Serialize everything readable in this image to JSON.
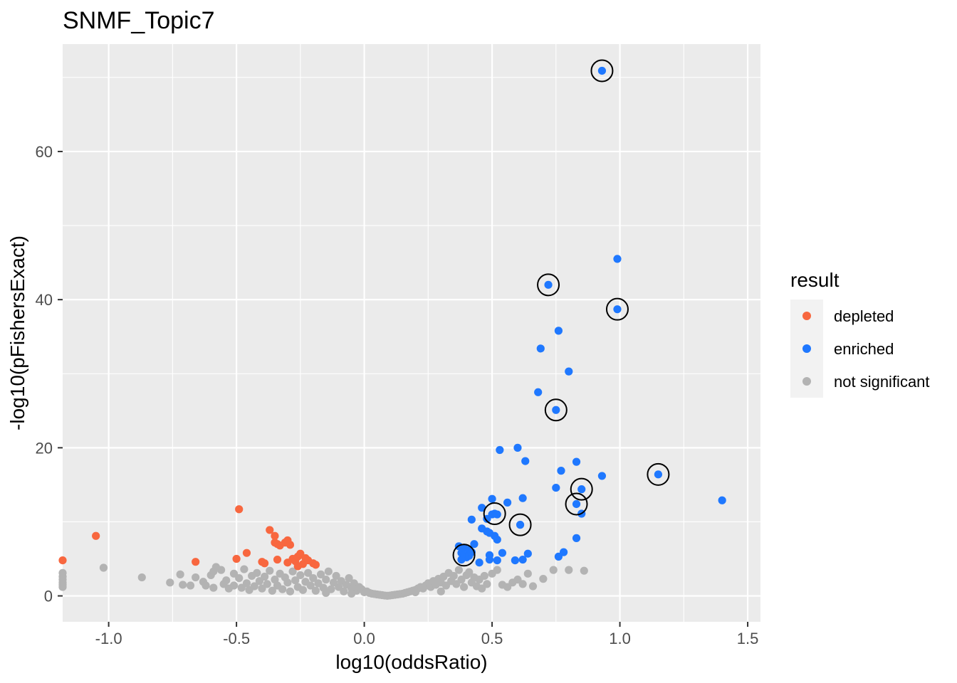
{
  "chart_data": {
    "type": "scatter",
    "title": "SNMF_Topic7",
    "xlabel": "log10(oddsRatio)",
    "ylabel": "-log10(pFishersExact)",
    "xlim": [
      -1.18,
      1.55
    ],
    "ylim": [
      -3.5,
      74.5
    ],
    "x_ticks": [
      -1.0,
      -0.5,
      0.0,
      0.5,
      1.0,
      1.5
    ],
    "x_tick_labels": [
      "-1.0",
      "-0.5",
      "0.0",
      "0.5",
      "1.0",
      "1.5"
    ],
    "y_ticks": [
      0,
      20,
      40,
      60
    ],
    "y_tick_labels": [
      "0",
      "20",
      "40",
      "60"
    ],
    "grid": true,
    "legend": {
      "title": "result",
      "placement": "right",
      "entries": [
        {
          "label": "depleted",
          "color": "#F8673F"
        },
        {
          "label": "enriched",
          "color": "#1F78FF"
        },
        {
          "label": "not significant",
          "color": "#B3B3B3"
        }
      ]
    },
    "series": [
      {
        "name": "depleted",
        "color": "#F8673F",
        "points": [
          [
            -1.18,
            4.8
          ],
          [
            -1.05,
            8.1
          ],
          [
            -0.49,
            11.7
          ],
          [
            -0.66,
            4.6
          ],
          [
            -0.46,
            5.8
          ],
          [
            -0.5,
            5.0
          ],
          [
            -0.4,
            4.6
          ],
          [
            -0.39,
            4.4
          ],
          [
            -0.37,
            8.9
          ],
          [
            -0.35,
            8.1
          ],
          [
            -0.35,
            7.2
          ],
          [
            -0.34,
            7.0
          ],
          [
            -0.33,
            6.8
          ],
          [
            -0.31,
            7.2
          ],
          [
            -0.3,
            7.5
          ],
          [
            -0.29,
            6.9
          ],
          [
            -0.28,
            5.0
          ],
          [
            -0.27,
            4.7
          ],
          [
            -0.26,
            5.3
          ],
          [
            -0.25,
            5.7
          ],
          [
            -0.24,
            4.3
          ],
          [
            -0.23,
            5.1
          ],
          [
            -0.22,
            4.8
          ],
          [
            -0.2,
            4.4
          ],
          [
            -0.19,
            4.2
          ],
          [
            -0.34,
            4.9
          ],
          [
            -0.3,
            4.5
          ],
          [
            -0.26,
            4.0
          ]
        ]
      },
      {
        "name": "enriched",
        "color": "#1F78FF",
        "points": [
          [
            0.93,
            70.9
          ],
          [
            0.99,
            45.5
          ],
          [
            0.72,
            42.0
          ],
          [
            0.99,
            38.7
          ],
          [
            0.76,
            35.8
          ],
          [
            0.69,
            33.4
          ],
          [
            0.8,
            30.3
          ],
          [
            0.68,
            27.5
          ],
          [
            0.75,
            25.1
          ],
          [
            0.53,
            19.7
          ],
          [
            0.6,
            20.0
          ],
          [
            0.63,
            18.2
          ],
          [
            0.83,
            18.1
          ],
          [
            0.77,
            16.9
          ],
          [
            0.93,
            16.2
          ],
          [
            1.15,
            16.4
          ],
          [
            0.75,
            14.6
          ],
          [
            0.85,
            14.4
          ],
          [
            0.62,
            13.2
          ],
          [
            0.5,
            13.1
          ],
          [
            1.4,
            12.9
          ],
          [
            0.56,
            12.6
          ],
          [
            0.83,
            12.4
          ],
          [
            0.46,
            11.9
          ],
          [
            0.5,
            11.0
          ],
          [
            0.51,
            11.1
          ],
          [
            0.52,
            11.0
          ],
          [
            0.85,
            11.1
          ],
          [
            0.48,
            10.4
          ],
          [
            0.42,
            10.3
          ],
          [
            0.61,
            9.6
          ],
          [
            0.46,
            9.1
          ],
          [
            0.48,
            8.7
          ],
          [
            0.49,
            8.5
          ],
          [
            0.51,
            8.1
          ],
          [
            0.52,
            7.6
          ],
          [
            0.83,
            7.8
          ],
          [
            0.43,
            7.0
          ],
          [
            0.37,
            6.7
          ],
          [
            0.39,
            6.5
          ],
          [
            0.41,
            6.2
          ],
          [
            0.38,
            5.8
          ],
          [
            0.39,
            5.5
          ],
          [
            0.4,
            5.2
          ],
          [
            0.38,
            4.9
          ],
          [
            0.41,
            5.4
          ],
          [
            0.42,
            5.9
          ],
          [
            0.54,
            5.8
          ],
          [
            0.64,
            5.7
          ],
          [
            0.49,
            5.5
          ],
          [
            0.78,
            5.9
          ],
          [
            0.76,
            5.3
          ],
          [
            0.52,
            4.8
          ],
          [
            0.59,
            4.8
          ],
          [
            0.62,
            4.9
          ],
          [
            0.45,
            4.5
          ],
          [
            0.49,
            4.9
          ]
        ]
      },
      {
        "name": "not significant",
        "color": "#B3B3B3",
        "points": [
          [
            -1.18,
            3.1
          ],
          [
            -1.18,
            2.6
          ],
          [
            -1.18,
            2.2
          ],
          [
            -1.18,
            1.8
          ],
          [
            -1.18,
            1.5
          ],
          [
            -1.18,
            1.2
          ],
          [
            -1.02,
            3.8
          ],
          [
            -0.87,
            2.5
          ],
          [
            -0.76,
            1.8
          ],
          [
            -0.72,
            2.9
          ],
          [
            -0.71,
            1.5
          ],
          [
            -0.68,
            1.4
          ],
          [
            -0.66,
            2.5
          ],
          [
            -0.63,
            1.9
          ],
          [
            -0.62,
            1.4
          ],
          [
            -0.6,
            2.8
          ],
          [
            -0.59,
            3.3
          ],
          [
            -0.59,
            1.1
          ],
          [
            -0.58,
            3.9
          ],
          [
            -0.56,
            3.5
          ],
          [
            -0.55,
            1.6
          ],
          [
            -0.54,
            2.1
          ],
          [
            -0.53,
            1.0
          ],
          [
            -0.51,
            3.0
          ],
          [
            -0.51,
            1.4
          ],
          [
            -0.49,
            2.4
          ],
          [
            -0.48,
            1.1
          ],
          [
            -0.47,
            3.6
          ],
          [
            -0.46,
            1.7
          ],
          [
            -0.45,
            0.8
          ],
          [
            -0.44,
            2.7
          ],
          [
            -0.43,
            1.3
          ],
          [
            -0.42,
            3.1
          ],
          [
            -0.41,
            2.0
          ],
          [
            -0.4,
            1.0
          ],
          [
            -0.39,
            2.6
          ],
          [
            -0.38,
            1.6
          ],
          [
            -0.37,
            3.4
          ],
          [
            -0.36,
            0.7
          ],
          [
            -0.35,
            2.2
          ],
          [
            -0.34,
            1.4
          ],
          [
            -0.33,
            3.0
          ],
          [
            -0.32,
            0.9
          ],
          [
            -0.31,
            2.5
          ],
          [
            -0.3,
            1.8
          ],
          [
            -0.29,
            0.6
          ],
          [
            -0.28,
            3.3
          ],
          [
            -0.27,
            2.1
          ],
          [
            -0.26,
            1.2
          ],
          [
            -0.25,
            2.8
          ],
          [
            -0.24,
            0.8
          ],
          [
            -0.23,
            1.9
          ],
          [
            -0.22,
            3.1
          ],
          [
            -0.21,
            1.4
          ],
          [
            -0.2,
            2.4
          ],
          [
            -0.19,
            0.7
          ],
          [
            -0.18,
            1.7
          ],
          [
            -0.17,
            2.9
          ],
          [
            -0.16,
            1.1
          ],
          [
            -0.15,
            2.2
          ],
          [
            -0.14,
            3.3
          ],
          [
            -0.13,
            0.9
          ],
          [
            -0.12,
            1.8
          ],
          [
            -0.11,
            2.7
          ],
          [
            -0.1,
            1.2
          ],
          [
            -0.09,
            2.0
          ],
          [
            -0.08,
            0.6
          ],
          [
            -0.07,
            1.5
          ],
          [
            -0.06,
            2.4
          ],
          [
            -0.05,
            1.0
          ],
          [
            -0.04,
            1.7
          ],
          [
            -0.03,
            0.7
          ],
          [
            -0.02,
            1.2
          ],
          [
            -0.01,
            0.9
          ],
          [
            0.0,
            0.5
          ],
          [
            0.01,
            0.6
          ],
          [
            0.02,
            0.4
          ],
          [
            0.03,
            0.3
          ],
          [
            0.04,
            0.25
          ],
          [
            0.05,
            0.2
          ],
          [
            0.06,
            0.15
          ],
          [
            0.07,
            0.1
          ],
          [
            0.08,
            0.05
          ],
          [
            0.09,
            0.02
          ],
          [
            0.1,
            0.05
          ],
          [
            0.11,
            0.1
          ],
          [
            0.12,
            0.15
          ],
          [
            0.13,
            0.2
          ],
          [
            0.14,
            0.25
          ],
          [
            0.15,
            0.3
          ],
          [
            0.16,
            0.4
          ],
          [
            0.17,
            0.5
          ],
          [
            0.18,
            0.6
          ],
          [
            0.19,
            0.7
          ],
          [
            0.2,
            0.8
          ],
          [
            0.21,
            1.0
          ],
          [
            0.22,
            1.2
          ],
          [
            0.23,
            1.0
          ],
          [
            0.24,
            1.4
          ],
          [
            0.25,
            1.7
          ],
          [
            0.26,
            1.2
          ],
          [
            0.27,
            2.0
          ],
          [
            0.28,
            1.5
          ],
          [
            0.29,
            2.3
          ],
          [
            0.3,
            1.8
          ],
          [
            0.31,
            2.6
          ],
          [
            0.32,
            1.4
          ],
          [
            0.33,
            3.1
          ],
          [
            0.34,
            2.0
          ],
          [
            0.35,
            2.7
          ],
          [
            0.36,
            1.6
          ],
          [
            0.37,
            3.5
          ],
          [
            0.38,
            2.2
          ],
          [
            0.39,
            1.2
          ],
          [
            0.4,
            2.8
          ],
          [
            0.41,
            3.2
          ],
          [
            0.42,
            1.8
          ],
          [
            0.43,
            2.5
          ],
          [
            0.44,
            1.3
          ],
          [
            0.45,
            2.2
          ],
          [
            0.46,
            1.0
          ],
          [
            0.47,
            2.7
          ],
          [
            0.48,
            1.6
          ],
          [
            0.5,
            3.0
          ],
          [
            0.52,
            3.5
          ],
          [
            0.54,
            1.5
          ],
          [
            0.56,
            1.2
          ],
          [
            0.58,
            1.8
          ],
          [
            0.6,
            2.2
          ],
          [
            0.62,
            1.6
          ],
          [
            0.64,
            3.0
          ],
          [
            0.66,
            1.3
          ],
          [
            0.7,
            2.3
          ],
          [
            0.74,
            3.5
          ],
          [
            0.8,
            3.5
          ],
          [
            0.86,
            3.4
          ],
          [
            -0.15,
            0.4
          ],
          [
            -0.05,
            0.3
          ],
          [
            0.2,
            0.5
          ],
          [
            0.3,
            0.6
          ]
        ]
      }
    ],
    "highlighted_points": [
      [
        0.93,
        70.9
      ],
      [
        0.72,
        42.0
      ],
      [
        0.99,
        38.7
      ],
      [
        0.75,
        25.1
      ],
      [
        1.15,
        16.4
      ],
      [
        0.85,
        14.4
      ],
      [
        0.83,
        12.4
      ],
      [
        0.51,
        11.1
      ],
      [
        0.61,
        9.6
      ],
      [
        0.39,
        5.5
      ]
    ]
  }
}
